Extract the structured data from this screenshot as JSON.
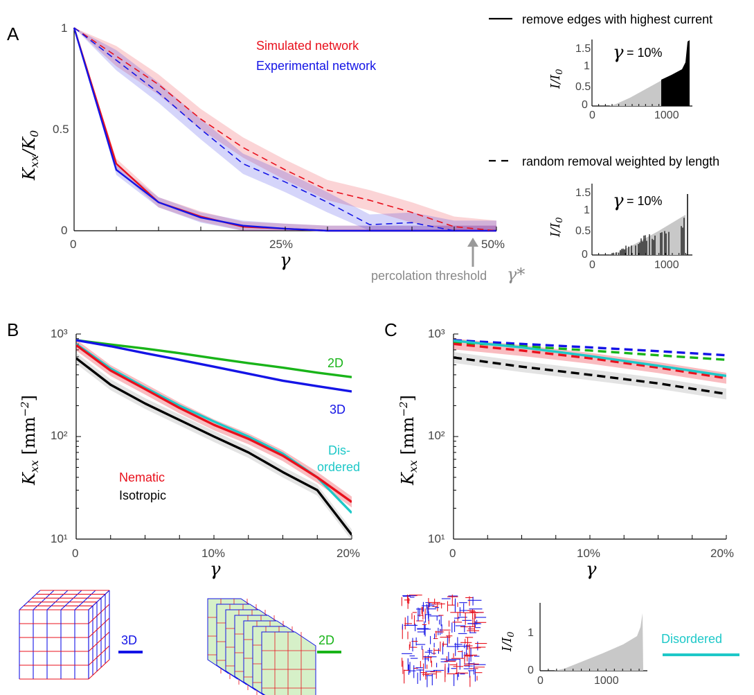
{
  "panels": {
    "A": "A",
    "B": "B",
    "C": "C"
  },
  "colors": {
    "red": "#e8101c",
    "blue": "#1414e6",
    "green": "#19b419",
    "cyan": "#1ec8c8",
    "black": "#000000",
    "gray": "#999999",
    "lightgray": "#c8c8c8"
  },
  "legend_top": {
    "solid": "remove edges with highest current",
    "dashed": "random removal weighted by length"
  },
  "inset_note": "= 10%",
  "percolation": {
    "label": "percolation threshold",
    "symbol": "γ*"
  },
  "labels_B": {
    "nematic": "Nematic",
    "isotropic": "Isotropic",
    "d2": "2D",
    "d3": "3D",
    "dis1": "Dis-",
    "dis2": "ordered"
  },
  "bottom": {
    "d3": "3D",
    "d2": "2D",
    "disordered": "Disordered"
  },
  "chart_data": [
    {
      "panel": "A",
      "type": "line",
      "ylabel": "K_xx / K_0",
      "xlabel": "γ",
      "xlim": [
        0,
        0.5
      ],
      "ylim": [
        0,
        1
      ],
      "xticks": [
        "0",
        "25%",
        "50%"
      ],
      "yticks": [
        "0",
        "0.5",
        "1"
      ],
      "legend": [
        "Simulated network",
        "Experimental network"
      ],
      "x": [
        0,
        0.05,
        0.1,
        0.15,
        0.2,
        0.25,
        0.3,
        0.35,
        0.4,
        0.45,
        0.5
      ],
      "series": [
        {
          "name": "Simulated network",
          "style": "solid",
          "color": "red",
          "values": [
            1,
            0.33,
            0.14,
            0.07,
            0.02,
            0.01,
            0.0,
            0.0,
            0.0,
            0.0,
            0.0
          ]
        },
        {
          "name": "Experimental network",
          "style": "solid",
          "color": "blue",
          "values": [
            1,
            0.3,
            0.14,
            0.065,
            0.025,
            0.01,
            0.0,
            0.0,
            0.0,
            0.0,
            0.0
          ]
        },
        {
          "name": "Simulated network",
          "style": "dashed",
          "color": "red",
          "values": [
            1,
            0.86,
            0.72,
            0.55,
            0.41,
            0.3,
            0.2,
            0.15,
            0.09,
            0.02,
            0.0
          ]
        },
        {
          "name": "Experimental network",
          "style": "dashed",
          "color": "blue",
          "values": [
            1,
            0.84,
            0.68,
            0.5,
            0.33,
            0.24,
            0.14,
            0.03,
            0.04,
            0.0,
            0.0
          ]
        }
      ]
    },
    {
      "panel": "A-inset-top",
      "type": "area",
      "ylabel": "I / I_0",
      "xticks": [
        "0",
        "1000"
      ],
      "yticks": [
        "0",
        "0.5",
        "1",
        "1.5"
      ],
      "xlim": [
        0,
        1100
      ],
      "ylim": [
        0,
        1.7
      ]
    },
    {
      "panel": "A-inset-bottom",
      "type": "bar",
      "ylabel": "I / I_0",
      "xticks": [
        "0",
        "1000"
      ],
      "yticks": [
        "0",
        "0.5",
        "1",
        "1.5"
      ],
      "xlim": [
        0,
        1100
      ],
      "ylim": [
        0,
        1.7
      ]
    },
    {
      "panel": "B",
      "type": "line",
      "ylabel": "K_xx [mm^-2]",
      "xlabel": "γ",
      "log_y": true,
      "xlim": [
        0,
        0.2
      ],
      "ylim": [
        10,
        1000
      ],
      "xticks": [
        "0",
        "10%",
        "20%"
      ],
      "yticks": [
        "10¹",
        "10²",
        "10³"
      ],
      "x": [
        0,
        0.025,
        0.05,
        0.075,
        0.1,
        0.125,
        0.15,
        0.175,
        0.2
      ],
      "series": [
        {
          "name": "2D",
          "color": "green",
          "values": [
            870,
            790,
            720,
            650,
            580,
            520,
            470,
            420,
            380
          ]
        },
        {
          "name": "3D",
          "color": "blue",
          "values": [
            870,
            760,
            650,
            560,
            480,
            410,
            350,
            310,
            275
          ]
        },
        {
          "name": "Disordered",
          "color": "cyan",
          "values": [
            800,
            460,
            300,
            200,
            140,
            100,
            68,
            40,
            18
          ]
        },
        {
          "name": "Nematic",
          "color": "red",
          "values": [
            780,
            440,
            290,
            190,
            130,
            95,
            65,
            40,
            23
          ]
        },
        {
          "name": "Isotropic",
          "color": "black",
          "values": [
            580,
            320,
            210,
            145,
            100,
            70,
            45,
            30,
            11
          ]
        }
      ]
    },
    {
      "panel": "C",
      "type": "line",
      "ylabel": "K_xx [mm^-2]",
      "xlabel": "γ",
      "log_y": true,
      "xlim": [
        0,
        0.2
      ],
      "ylim": [
        10,
        1000
      ],
      "xticks": [
        "0",
        "10%",
        "20%"
      ],
      "yticks": [
        "10¹",
        "10²",
        "10³"
      ],
      "x": [
        0,
        0.05,
        0.1,
        0.15,
        0.2
      ],
      "series": [
        {
          "style": "dashed",
          "color": "blue",
          "values": [
            870,
            800,
            740,
            680,
            620
          ]
        },
        {
          "style": "dashed",
          "color": "green",
          "values": [
            830,
            760,
            690,
            620,
            560
          ]
        },
        {
          "style": "dashed",
          "color": "red",
          "values": [
            800,
            690,
            580,
            470,
            370
          ]
        },
        {
          "style": "solid",
          "color": "cyan",
          "values": [
            860,
            740,
            610,
            490,
            390
          ]
        },
        {
          "style": "dashed",
          "color": "black",
          "values": [
            590,
            480,
            400,
            330,
            260
          ]
        }
      ]
    },
    {
      "panel": "bottom-inset",
      "type": "area",
      "ylabel": "I / I_0",
      "xticks": [
        "0",
        "1000"
      ],
      "yticks": [
        "0",
        "1"
      ],
      "xlim": [
        0,
        1250
      ],
      "ylim": [
        0,
        1.8
      ]
    }
  ]
}
